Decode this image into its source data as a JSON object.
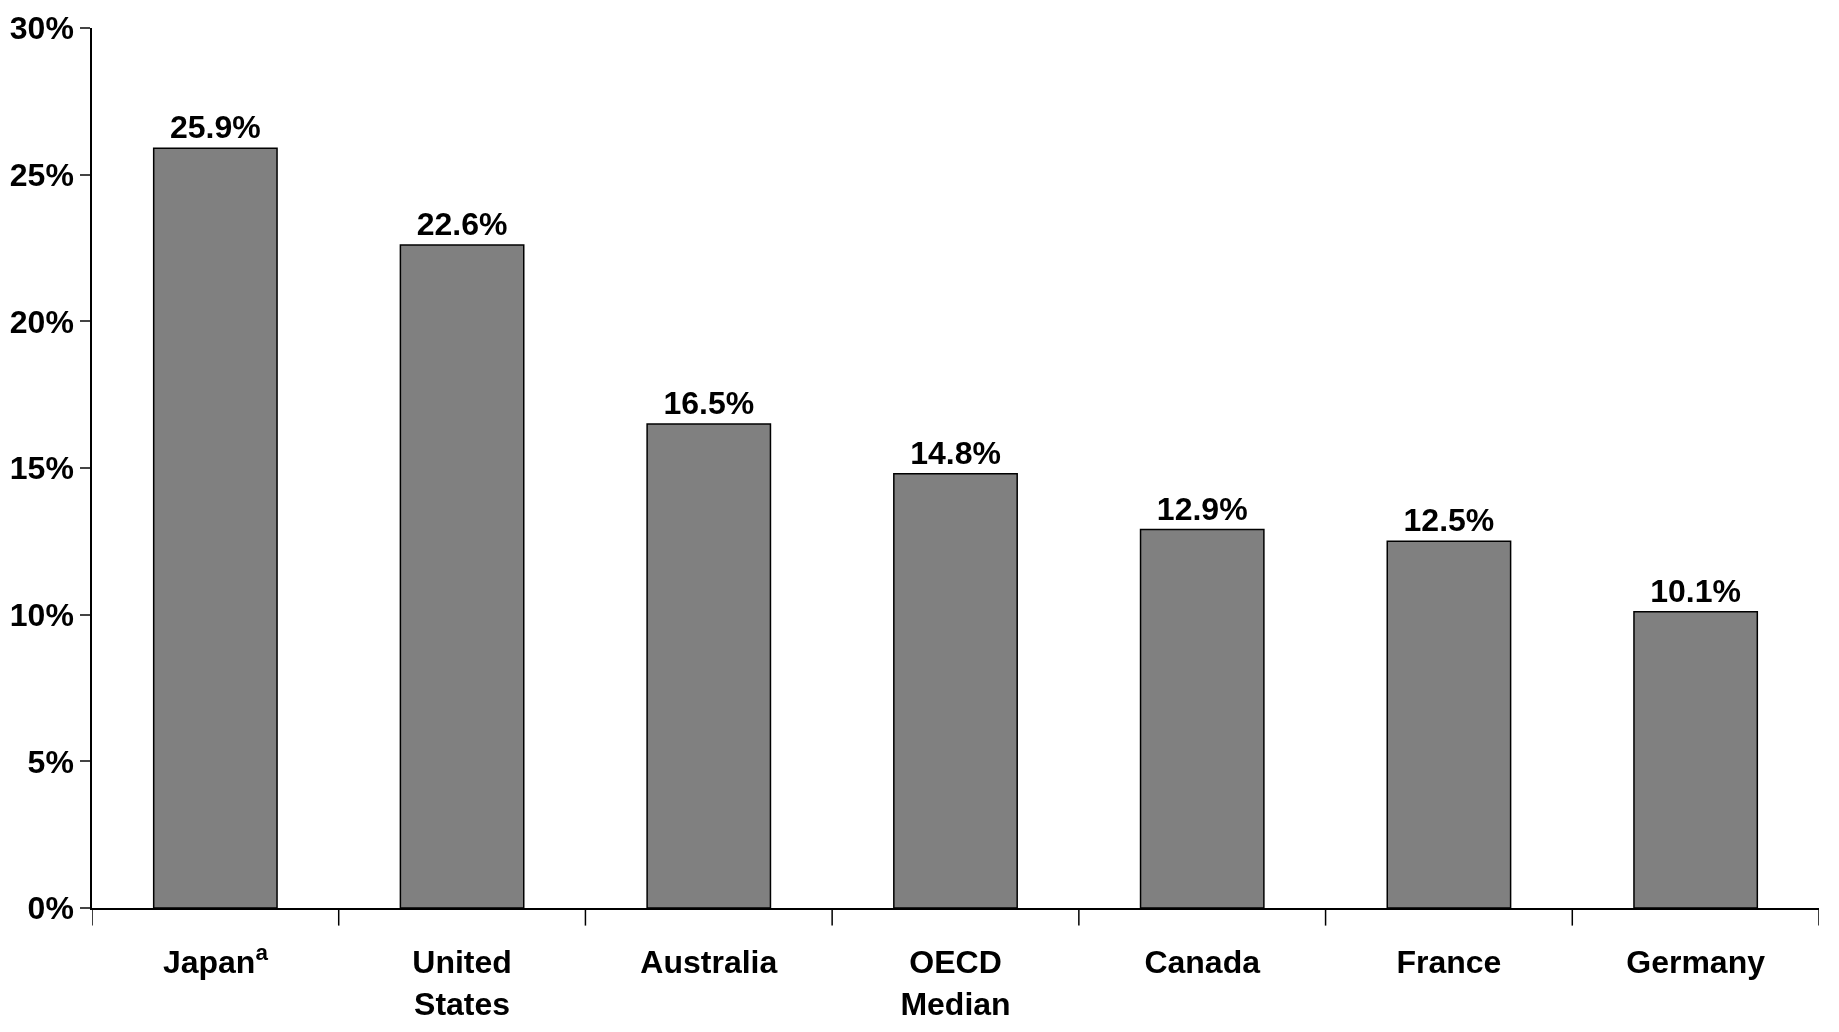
{
  "chart_data": {
    "type": "bar",
    "categories": [
      "Japan$^{a}$",
      "United States",
      "Australia",
      "OECD Median",
      "Canada",
      "France",
      "Germany"
    ],
    "values": [
      25.9,
      22.6,
      16.5,
      14.8,
      12.9,
      12.5,
      10.1
    ],
    "value_labels": [
      "25.9%",
      "22.6%",
      "16.5%",
      "14.8%",
      "12.9%",
      "12.5%",
      "10.1%"
    ],
    "color": "#808080",
    "ylim": [
      0,
      30
    ],
    "yticks": [
      {
        "value": 0,
        "label": "0%"
      },
      {
        "value": 5,
        "label": "5%"
      },
      {
        "value": 10,
        "label": "10%"
      },
      {
        "value": 15,
        "label": "15%"
      },
      {
        "value": 20,
        "label": "20%"
      },
      {
        "value": 25,
        "label": "25%"
      },
      {
        "value": 30,
        "label": "30%"
      }
    ],
    "legend": false
  }
}
